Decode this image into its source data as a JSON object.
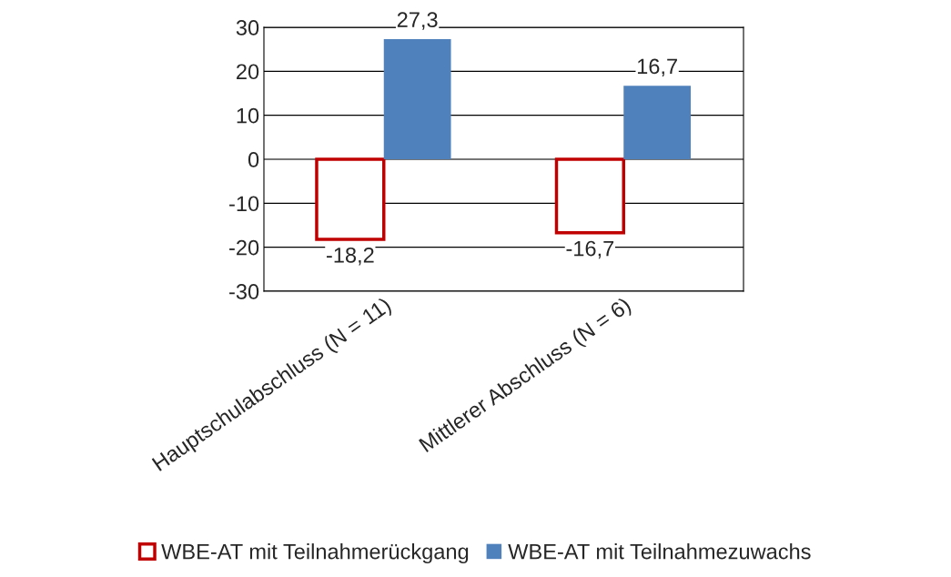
{
  "chart_data": {
    "type": "bar",
    "categories": [
      "Hauptschulabschluss (N = 11)",
      "Mittlerer Abschluss (N = 6)"
    ],
    "series": [
      {
        "name": "WBE-AT mit Teilnahmerückgang",
        "color": "#c00000",
        "values": [
          -18.2,
          -16.7
        ],
        "value_labels": [
          "-18,2",
          "-16,7"
        ]
      },
      {
        "name": "WBE-AT mit Teilnahmezuwachs",
        "color": "#4f81bd",
        "values": [
          27.3,
          16.7
        ],
        "value_labels": [
          "27,3",
          "16,7"
        ]
      }
    ],
    "ylim": [
      -30,
      30
    ],
    "yticks": [
      -30,
      -20,
      -10,
      0,
      10,
      20,
      30
    ],
    "grid": "y",
    "legend": "bottom"
  }
}
